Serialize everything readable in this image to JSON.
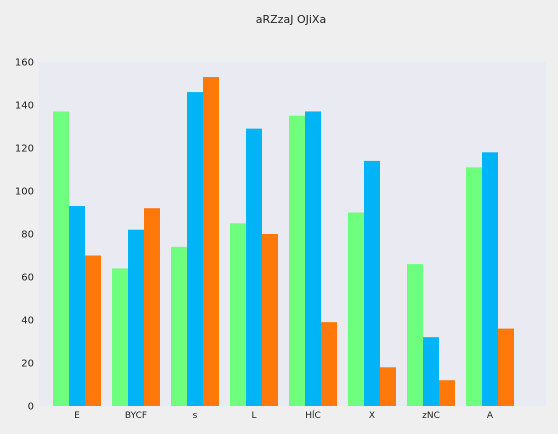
{
  "chart_data": {
    "type": "bar",
    "title": "aRZzaJ OJiXa",
    "xlabel": "",
    "ylabel": "",
    "categories": [
      "E",
      "BYCF",
      "s",
      "L",
      "HĺC",
      "X",
      "zNC",
      "A"
    ],
    "series": [
      {
        "values": [
          137,
          64,
          74,
          85,
          135,
          90,
          66,
          111
        ],
        "color": "#6eff7e"
      },
      {
        "values": [
          93,
          82,
          146,
          129,
          137,
          114,
          32,
          118
        ],
        "color": "#00b4f5"
      },
      {
        "values": [
          70,
          92,
          153,
          80,
          39,
          18,
          12,
          36
        ],
        "color": "#ff780a"
      }
    ],
    "ylim": [
      0,
      160
    ],
    "yticks": [
      0,
      20,
      40,
      60,
      80,
      100,
      120,
      140,
      160
    ],
    "grid": false,
    "legend": "none",
    "plot_background": "#eaeaf2"
  }
}
